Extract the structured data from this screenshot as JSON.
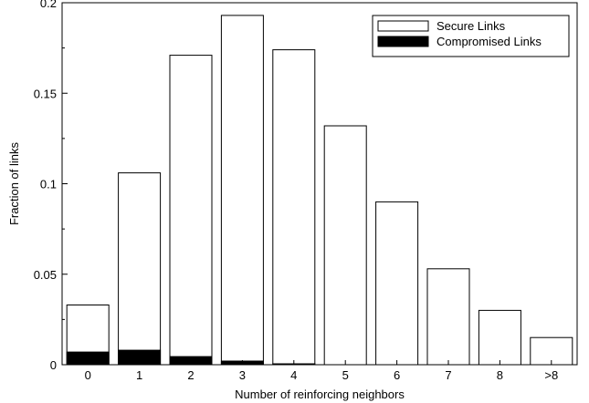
{
  "chart_data": {
    "type": "bar",
    "stacked": "overlay",
    "title": "",
    "xlabel": "Number of reinforcing neighbors",
    "ylabel": "Fraction of links",
    "categories": [
      "0",
      "1",
      "2",
      "3",
      "4",
      "5",
      "6",
      "7",
      "8",
      ">8"
    ],
    "series": [
      {
        "name": "Secure Links",
        "fill": "#ffffff",
        "stroke": "#000000",
        "values": [
          0.033,
          0.106,
          0.171,
          0.193,
          0.174,
          0.132,
          0.09,
          0.053,
          0.03,
          0.015
        ]
      },
      {
        "name": "Compromised Links",
        "fill": "#000000",
        "stroke": "#000000",
        "values": [
          0.007,
          0.008,
          0.0045,
          0.002,
          0.0005,
          0,
          0,
          0,
          0,
          0
        ]
      }
    ],
    "ylim": [
      0,
      0.2
    ],
    "yticks": [
      0,
      0.05,
      0.1,
      0.15,
      0.2
    ],
    "ytick_labels": [
      "0",
      "0.05",
      "0.1",
      "0.15",
      "0.2"
    ],
    "grid": false,
    "legend_position": "top-right"
  }
}
